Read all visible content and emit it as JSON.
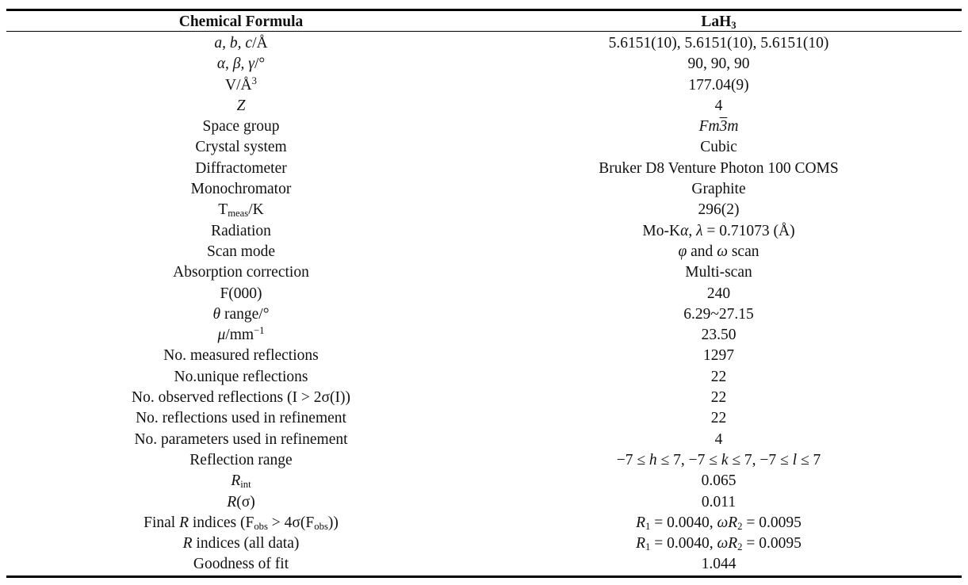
{
  "header": {
    "left": [
      [
        "Chemical Formula",
        ""
      ]
    ],
    "right": [
      [
        "LaH",
        ""
      ],
      [
        "3",
        "sub"
      ]
    ]
  },
  "rows": [
    {
      "left": [
        [
          "a, b, c",
          "i"
        ],
        [
          "/Å",
          ""
        ]
      ],
      "right": [
        [
          "5.6151(10), 5.6151(10), 5.6151(10)",
          ""
        ]
      ]
    },
    {
      "left": [
        [
          "α, β, γ",
          "i"
        ],
        [
          "/°",
          ""
        ]
      ],
      "right": [
        [
          "90, 90, 90",
          ""
        ]
      ]
    },
    {
      "left": [
        [
          "V/Å",
          ""
        ],
        [
          "3",
          "sup"
        ]
      ],
      "right": [
        [
          "177.04(9)",
          ""
        ]
      ]
    },
    {
      "left": [
        [
          "Z",
          "i"
        ]
      ],
      "right": [
        [
          "4",
          ""
        ]
      ]
    },
    {
      "left": [
        [
          "Space group",
          ""
        ]
      ],
      "right": [
        [
          "Fm",
          "i"
        ],
        [
          "3",
          "ibar"
        ],
        [
          "m",
          "i"
        ]
      ]
    },
    {
      "left": [
        [
          "Crystal system",
          ""
        ]
      ],
      "right": [
        [
          "Cubic",
          ""
        ]
      ]
    },
    {
      "left": [
        [
          "Diffractometer",
          ""
        ]
      ],
      "right": [
        [
          "Bruker D8 Venture Photon 100 COMS",
          ""
        ]
      ]
    },
    {
      "left": [
        [
          "Monochromator",
          ""
        ]
      ],
      "right": [
        [
          "Graphite",
          ""
        ]
      ]
    },
    {
      "left": [
        [
          "T",
          ""
        ],
        [
          "meas",
          "sub"
        ],
        [
          "/K",
          ""
        ]
      ],
      "right": [
        [
          "296(2)",
          ""
        ]
      ]
    },
    {
      "left": [
        [
          "Radiation",
          ""
        ]
      ],
      "right": [
        [
          "Mo-K",
          ""
        ],
        [
          "α",
          "i"
        ],
        [
          ", ",
          ""
        ],
        [
          "λ",
          "i"
        ],
        [
          " = 0.71073 (Å)",
          ""
        ]
      ]
    },
    {
      "left": [
        [
          "Scan mode",
          ""
        ]
      ],
      "right": [
        [
          "φ",
          "i"
        ],
        [
          " and ",
          ""
        ],
        [
          "ω",
          "i"
        ],
        [
          " scan",
          ""
        ]
      ]
    },
    {
      "left": [
        [
          "Absorption correction",
          ""
        ]
      ],
      "right": [
        [
          "Multi-scan",
          ""
        ]
      ]
    },
    {
      "left": [
        [
          "F(000)",
          ""
        ]
      ],
      "right": [
        [
          "240",
          ""
        ]
      ]
    },
    {
      "left": [
        [
          "θ",
          "i"
        ],
        [
          " range/°",
          ""
        ]
      ],
      "right": [
        [
          "6.29~27.15",
          ""
        ]
      ]
    },
    {
      "left": [
        [
          "μ",
          "i"
        ],
        [
          "/mm",
          ""
        ],
        [
          "−1",
          "sup"
        ]
      ],
      "right": [
        [
          "23.50",
          ""
        ]
      ]
    },
    {
      "left": [
        [
          "No. measured reflections",
          ""
        ]
      ],
      "right": [
        [
          "1297",
          ""
        ]
      ]
    },
    {
      "left": [
        [
          "No.unique reflections",
          ""
        ]
      ],
      "right": [
        [
          "22",
          ""
        ]
      ]
    },
    {
      "left": [
        [
          "No. observed reflections (I > 2σ(I))",
          ""
        ]
      ],
      "right": [
        [
          "22",
          ""
        ]
      ]
    },
    {
      "left": [
        [
          "No. reflections used in refinement",
          ""
        ]
      ],
      "right": [
        [
          "22",
          ""
        ]
      ]
    },
    {
      "left": [
        [
          "No. parameters used in refinement",
          ""
        ]
      ],
      "right": [
        [
          "4",
          ""
        ]
      ]
    },
    {
      "left": [
        [
          "Reflection range",
          ""
        ]
      ],
      "right": [
        [
          "−7 ≤ ",
          ""
        ],
        [
          "h",
          "i"
        ],
        [
          " ≤ 7, −7 ≤ ",
          ""
        ],
        [
          "k",
          "i"
        ],
        [
          " ≤ 7, −7 ≤ ",
          ""
        ],
        [
          "l",
          "i"
        ],
        [
          " ≤ 7",
          ""
        ]
      ]
    },
    {
      "left": [
        [
          "R",
          "i"
        ],
        [
          "int",
          "sub"
        ]
      ],
      "right": [
        [
          "0.065",
          ""
        ]
      ]
    },
    {
      "left": [
        [
          "R",
          "i"
        ],
        [
          "(σ)",
          ""
        ]
      ],
      "right": [
        [
          "0.011",
          ""
        ]
      ]
    },
    {
      "left": [
        [
          "Final ",
          ""
        ],
        [
          "R",
          "i"
        ],
        [
          " indices (F",
          ""
        ],
        [
          "obs",
          "sub"
        ],
        [
          " > 4σ(F",
          ""
        ],
        [
          "obs",
          "sub"
        ],
        [
          "))",
          ""
        ]
      ],
      "right": [
        [
          "R",
          "i"
        ],
        [
          "1",
          "sub"
        ],
        [
          " = 0.0040, ",
          ""
        ],
        [
          "ωR",
          "i"
        ],
        [
          "2",
          "sub"
        ],
        [
          " = 0.0095",
          ""
        ]
      ]
    },
    {
      "left": [
        [
          "R",
          "i"
        ],
        [
          " indices (all data)",
          ""
        ]
      ],
      "right": [
        [
          "R",
          "i"
        ],
        [
          "1",
          "sub"
        ],
        [
          " = 0.0040, ",
          ""
        ],
        [
          "ωR",
          "i"
        ],
        [
          "2",
          "sub"
        ],
        [
          " = 0.0095",
          ""
        ]
      ]
    },
    {
      "left": [
        [
          "Goodness of fit",
          ""
        ]
      ],
      "right": [
        [
          "1.044",
          ""
        ]
      ]
    }
  ]
}
